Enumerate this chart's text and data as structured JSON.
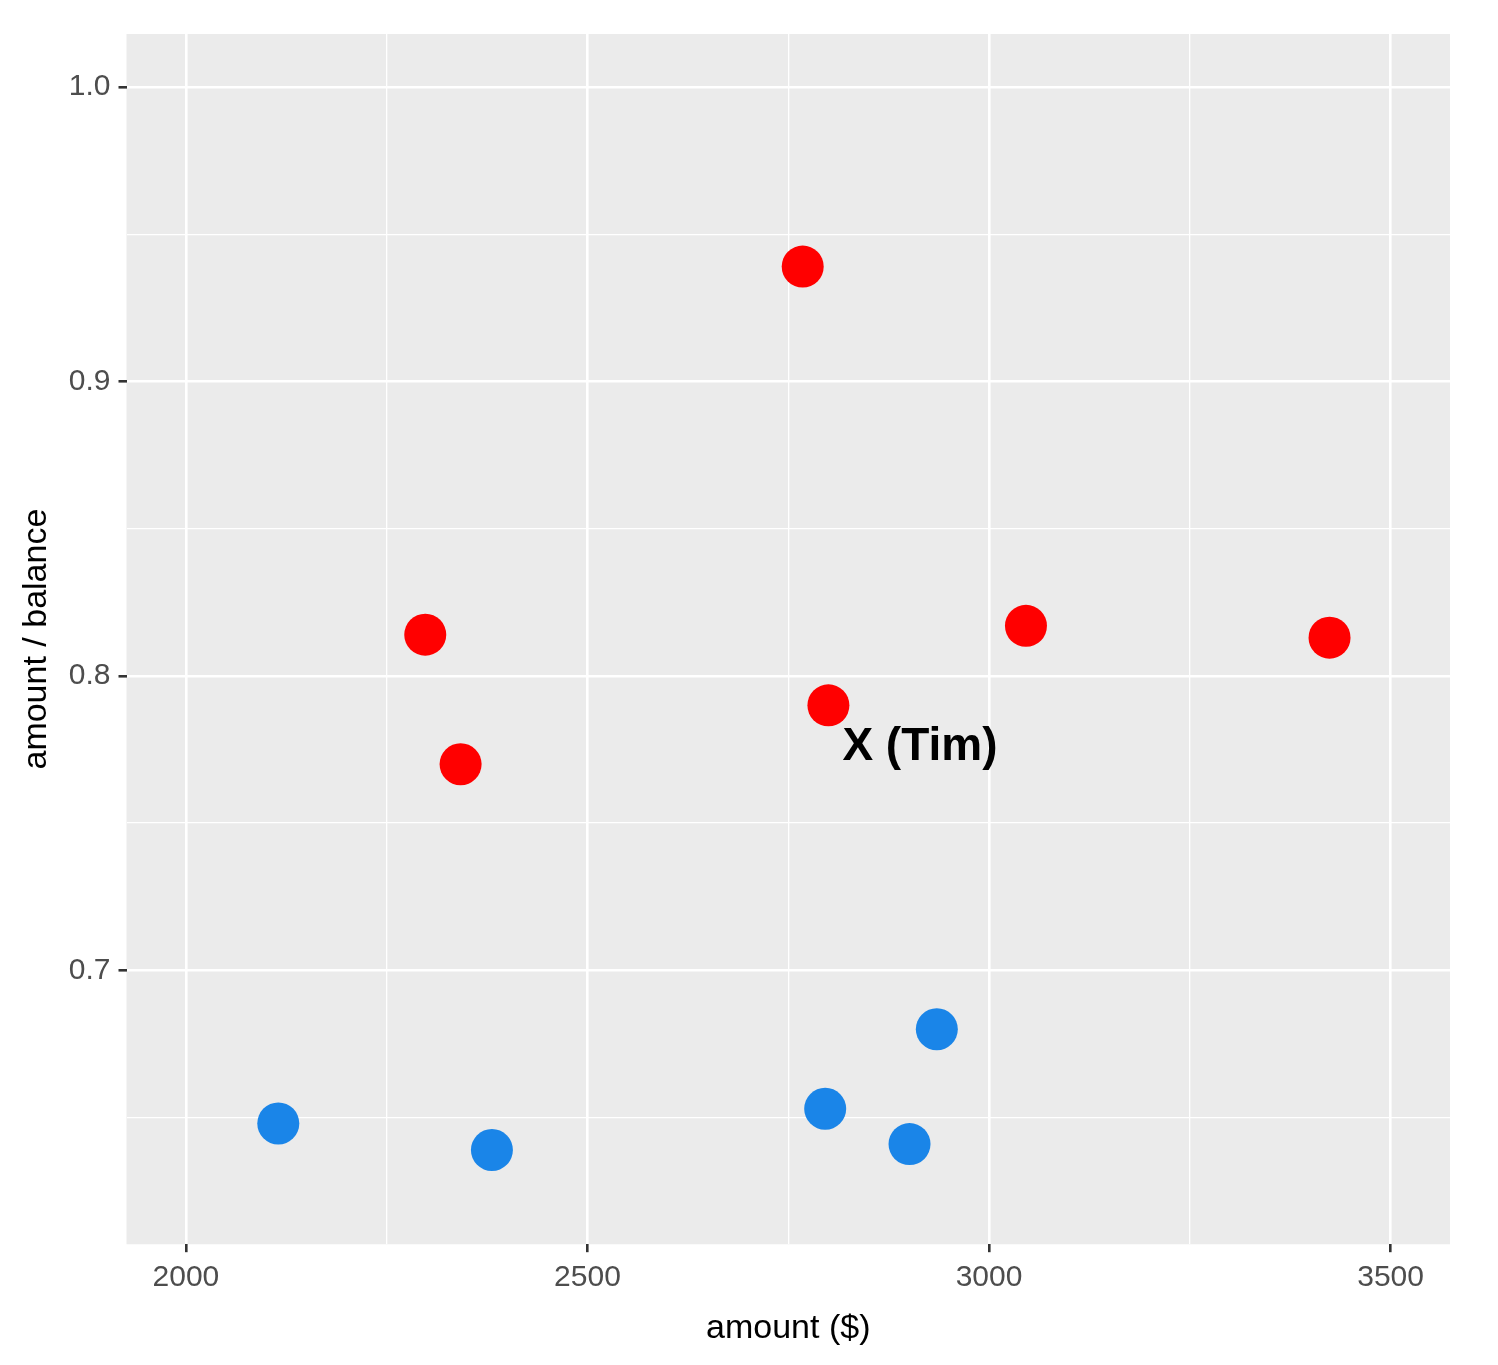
{
  "chart_data": {
    "type": "scatter",
    "xlabel": "amount ($)",
    "ylabel": "amount / balance",
    "xlim": [
      1926,
      3574
    ],
    "xticks": [
      2000,
      {
        "value": 2250,
        "label": null
      },
      2500,
      {
        "value": 2750,
        "label": null
      },
      3000,
      {
        "value": 3250,
        "label": null
      },
      3500
    ],
    "ylim": [
      0.607,
      1.018
    ],
    "yticks": [
      {
        "value": 0.65,
        "label": null
      },
      {
        "value": 0.7,
        "label": "0.7"
      },
      {
        "value": 0.75,
        "label": null
      },
      {
        "value": 0.8,
        "label": "0.8"
      },
      {
        "value": 0.85,
        "label": null
      },
      {
        "value": 0.9,
        "label": "0.9"
      },
      {
        "value": 0.95,
        "label": null
      },
      {
        "value": 1.0,
        "label": "1.0"
      }
    ],
    "grid": true,
    "legend": false,
    "marker": "circle",
    "series": [
      {
        "color": "#ff0000",
        "x": [
          2768,
          2298,
          2342,
          3046,
          3424,
          2800
        ],
        "values": [
          0.939,
          0.814,
          0.77,
          0.817,
          0.813,
          0.79
        ]
      },
      {
        "color": "#1a85e8",
        "x": [
          2115,
          2381,
          2796,
          2901,
          2935
        ],
        "values": [
          0.648,
          0.639,
          0.653,
          0.641,
          0.68
        ]
      }
    ],
    "annotations": [
      {
        "text": "X (Tim)",
        "x": 2800,
        "y": 0.79
      }
    ]
  }
}
